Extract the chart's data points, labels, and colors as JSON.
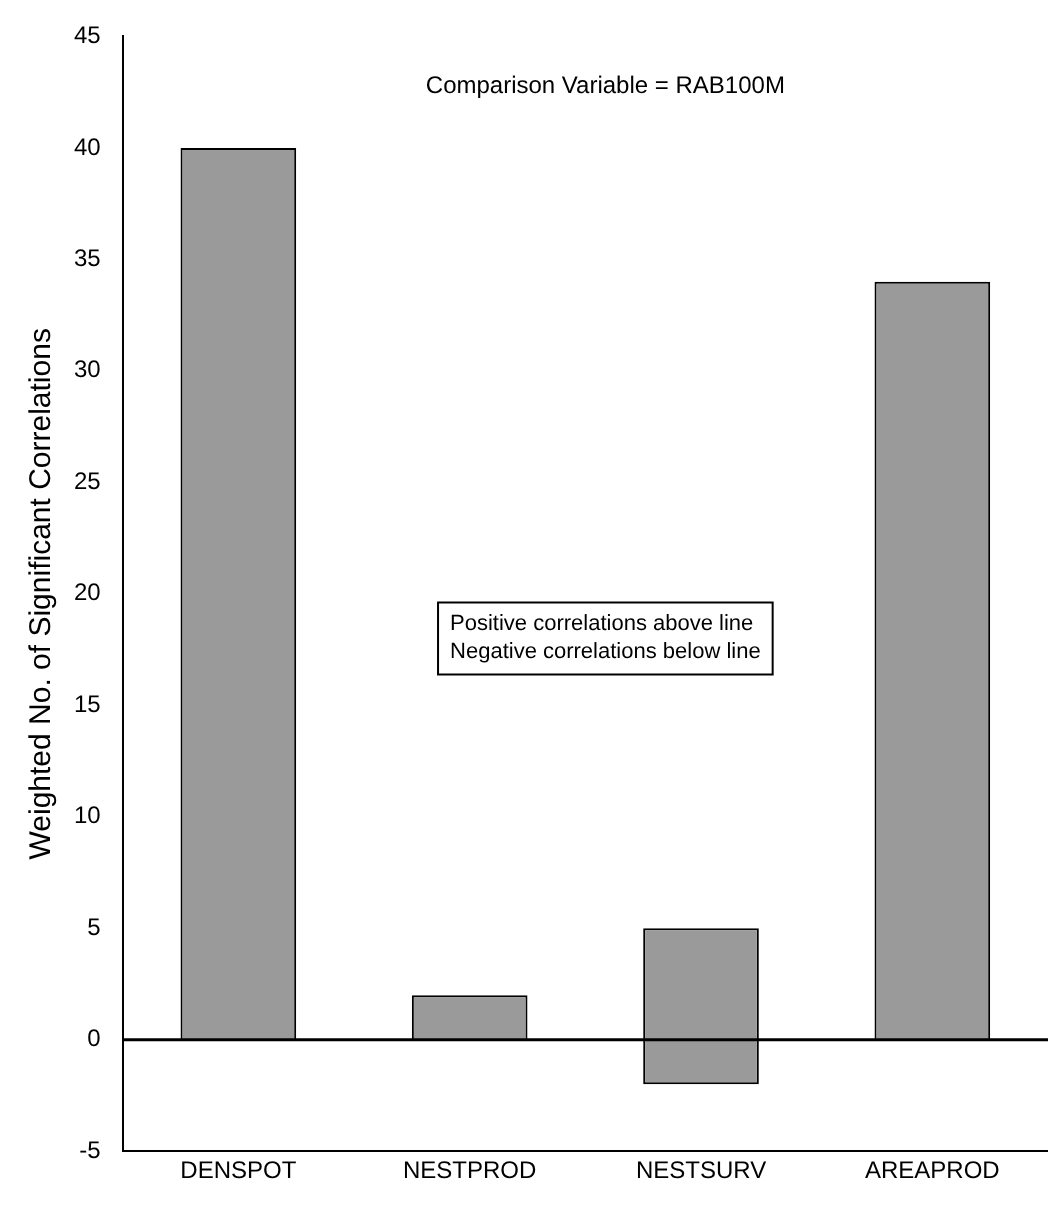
{
  "chart_data": {
    "type": "bar",
    "ylabel": "Weighted No. of Significant Correlations",
    "categories": [
      "DENSPOT",
      "NESTPROD",
      "NESTSURV",
      "AREAPROD"
    ],
    "stacked": true,
    "series": [
      {
        "color": "#9a9a9a",
        "values": [
          40,
          2,
          5,
          34
        ]
      },
      {
        "color": "#9a9a9a",
        "values": [
          null,
          null,
          -2,
          null
        ]
      }
    ],
    "ylim": [
      -5,
      45
    ],
    "yticks": [
      -5,
      0,
      5,
      10,
      15,
      20,
      25,
      30,
      35,
      40,
      45
    ],
    "grid": false,
    "legend": false,
    "ref_lines": [
      {
        "axis": "y",
        "value": 0,
        "color": "#000000"
      }
    ],
    "annotations": [
      "Comparison Variable = RAB100M",
      "Positive correlations above line\nNegative correlations below line"
    ]
  }
}
